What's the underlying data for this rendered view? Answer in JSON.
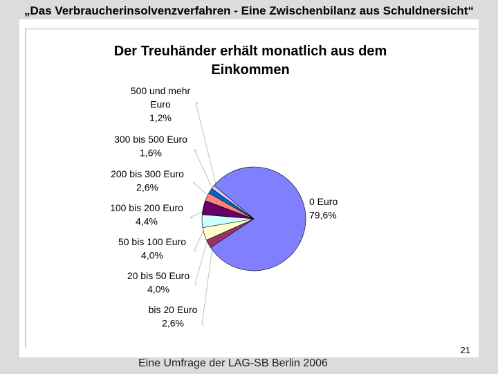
{
  "slide": {
    "title": "„Das Verbraucherinsolvenzverfahren -  Eine Zwischenbilanz aus Schuldnersicht“",
    "page_number": "21",
    "footer": "Eine Umfrage der LAG-SB Berlin 2006"
  },
  "chart_data": {
    "type": "pie",
    "title_lines": [
      "Der Treuhänder erhält monatlich aus dem",
      "Einkommen"
    ],
    "slices": [
      {
        "name_lines": [
          "0 Euro"
        ],
        "value_label": "79,6%",
        "value": 79.6,
        "color": "#8080ff"
      },
      {
        "name_lines": [
          "bis 20 Euro"
        ],
        "value_label": "2,6%",
        "value": 2.6,
        "color": "#993366"
      },
      {
        "name_lines": [
          "20 bis 50 Euro"
        ],
        "value_label": "4,0%",
        "value": 4.0,
        "color": "#ffffcc"
      },
      {
        "name_lines": [
          "50 bis 100 Euro"
        ],
        "value_label": "4,0%",
        "value": 4.0,
        "color": "#ccffff"
      },
      {
        "name_lines": [
          "100 bis 200 Euro"
        ],
        "value_label": "4,4%",
        "value": 4.4,
        "color": "#660066"
      },
      {
        "name_lines": [
          "200 bis 300 Euro"
        ],
        "value_label": "2,6%",
        "value": 2.6,
        "color": "#ff8080"
      },
      {
        "name_lines": [
          "300 bis 500 Euro"
        ],
        "value_label": "1,6%",
        "value": 1.6,
        "color": "#0066cc"
      },
      {
        "name_lines": [
          "500 und mehr",
          "Euro"
        ],
        "value_label": "1,2%",
        "value": 1.2,
        "color": "#ccccff"
      }
    ]
  }
}
